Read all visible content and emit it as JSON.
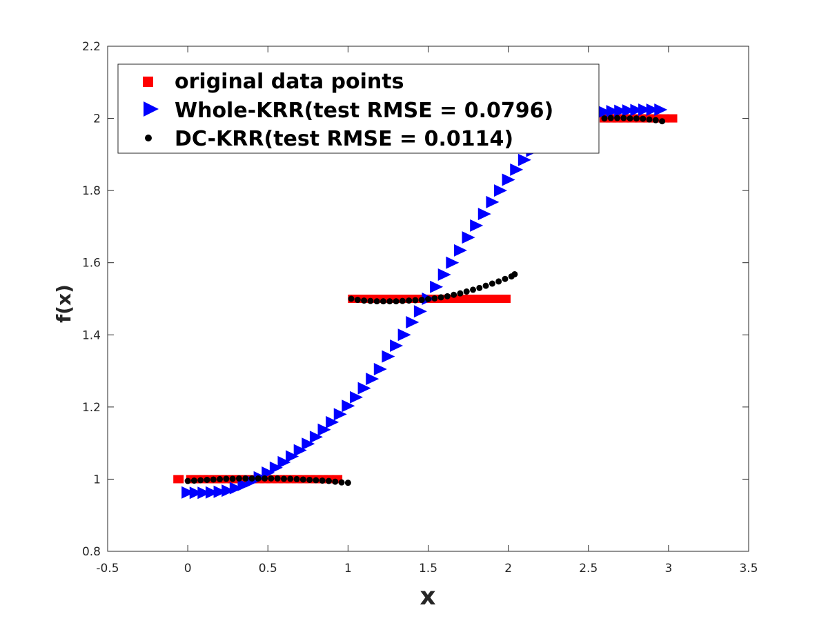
{
  "chart_data": {
    "type": "scatter",
    "title": "",
    "xlabel": "x",
    "ylabel": "f(x)",
    "xlim": [
      -0.5,
      3.5
    ],
    "ylim": [
      0.8,
      2.2
    ],
    "x_ticks": [
      "-0.5",
      "0",
      "0.5",
      "1",
      "1.5",
      "2",
      "2.5",
      "3",
      "3.5"
    ],
    "y_ticks": [
      "0.8",
      "1",
      "1.2",
      "1.4",
      "1.6",
      "1.8",
      "2",
      "2.2"
    ],
    "x_tick_values": [
      -0.5,
      0,
      0.5,
      1,
      1.5,
      2,
      2.5,
      3,
      3.5
    ],
    "y_tick_values": [
      0.8,
      1,
      1.2,
      1.4,
      1.6,
      1.8,
      2,
      2.2
    ],
    "grid": false,
    "legend_placement": "top-left",
    "series": [
      {
        "name": "original data points",
        "marker": "square",
        "color": "#ff0000",
        "points": [
          [
            -0.06,
            1.0
          ],
          [
            0.02,
            1.0
          ],
          [
            0.05,
            1.0
          ],
          [
            0.09,
            1.0
          ],
          [
            0.13,
            1.0
          ],
          [
            0.17,
            1.0
          ],
          [
            0.2,
            1.0
          ],
          [
            0.24,
            1.0
          ],
          [
            0.28,
            1.0
          ],
          [
            0.32,
            1.0
          ],
          [
            0.36,
            1.0
          ],
          [
            0.4,
            1.0
          ],
          [
            0.44,
            1.0
          ],
          [
            0.48,
            1.0
          ],
          [
            0.52,
            1.0
          ],
          [
            0.56,
            1.0
          ],
          [
            0.6,
            1.0
          ],
          [
            0.64,
            1.0
          ],
          [
            0.68,
            1.0
          ],
          [
            0.72,
            1.0
          ],
          [
            0.76,
            1.0
          ],
          [
            0.8,
            1.0
          ],
          [
            0.84,
            1.0
          ],
          [
            0.88,
            1.0
          ],
          [
            0.93,
            1.0
          ],
          [
            1.03,
            1.5
          ],
          [
            1.07,
            1.5
          ],
          [
            1.11,
            1.5
          ],
          [
            1.15,
            1.5
          ],
          [
            1.19,
            1.5
          ],
          [
            1.24,
            1.5
          ],
          [
            1.28,
            1.5
          ],
          [
            1.33,
            1.5
          ],
          [
            1.38,
            1.5
          ],
          [
            1.43,
            1.5
          ],
          [
            1.48,
            1.5
          ],
          [
            1.53,
            1.5
          ],
          [
            1.58,
            1.5
          ],
          [
            1.63,
            1.5
          ],
          [
            1.68,
            1.5
          ],
          [
            1.73,
            1.5
          ],
          [
            1.78,
            1.5
          ],
          [
            1.83,
            1.5
          ],
          [
            1.88,
            1.5
          ],
          [
            1.93,
            1.5
          ],
          [
            1.98,
            1.5
          ],
          [
            2.6,
            2.0
          ],
          [
            2.64,
            2.0
          ],
          [
            2.68,
            2.0
          ],
          [
            2.72,
            2.0
          ],
          [
            2.77,
            2.0
          ],
          [
            2.82,
            2.0
          ],
          [
            2.87,
            2.0
          ],
          [
            2.92,
            2.0
          ],
          [
            2.97,
            2.0
          ],
          [
            3.02,
            2.0
          ]
        ]
      },
      {
        "name": "Whole-KRR(test RMSE = 0.0796)",
        "marker": "triangle-right",
        "color": "#0000ff",
        "points": [
          [
            0.0,
            0.963
          ],
          [
            0.05,
            0.962
          ],
          [
            0.1,
            0.962
          ],
          [
            0.15,
            0.963
          ],
          [
            0.2,
            0.965
          ],
          [
            0.25,
            0.968
          ],
          [
            0.3,
            0.975
          ],
          [
            0.35,
            0.984
          ],
          [
            0.4,
            0.994
          ],
          [
            0.45,
            1.005
          ],
          [
            0.5,
            1.018
          ],
          [
            0.55,
            1.032
          ],
          [
            0.6,
            1.047
          ],
          [
            0.65,
            1.063
          ],
          [
            0.7,
            1.08
          ],
          [
            0.75,
            1.098
          ],
          [
            0.8,
            1.117
          ],
          [
            0.85,
            1.137
          ],
          [
            0.9,
            1.158
          ],
          [
            0.95,
            1.18
          ],
          [
            1.0,
            1.203
          ],
          [
            1.05,
            1.227
          ],
          [
            1.1,
            1.252
          ],
          [
            1.15,
            1.278
          ],
          [
            1.2,
            1.305
          ],
          [
            1.25,
            1.34
          ],
          [
            1.3,
            1.37
          ],
          [
            1.35,
            1.4
          ],
          [
            1.4,
            1.435
          ],
          [
            1.45,
            1.465
          ],
          [
            1.5,
            1.5
          ],
          [
            1.55,
            1.533
          ],
          [
            1.6,
            1.567
          ],
          [
            1.65,
            1.6
          ],
          [
            1.7,
            1.634
          ],
          [
            1.75,
            1.67
          ],
          [
            1.8,
            1.703
          ],
          [
            1.85,
            1.735
          ],
          [
            1.9,
            1.768
          ],
          [
            1.95,
            1.8
          ],
          [
            2.0,
            1.83
          ],
          [
            2.05,
            1.858
          ],
          [
            2.1,
            1.885
          ],
          [
            2.15,
            1.91
          ],
          [
            2.2,
            1.933
          ],
          [
            2.25,
            1.953
          ],
          [
            2.3,
            1.97
          ],
          [
            2.35,
            1.985
          ],
          [
            2.4,
            1.997
          ],
          [
            2.45,
            2.006
          ],
          [
            2.5,
            2.012
          ],
          [
            2.55,
            2.016
          ],
          [
            2.6,
            2.018
          ],
          [
            2.65,
            2.02
          ],
          [
            2.7,
            2.021
          ],
          [
            2.75,
            2.022
          ],
          [
            2.8,
            2.023
          ],
          [
            2.85,
            2.024
          ],
          [
            2.9,
            2.024
          ],
          [
            2.95,
            2.024
          ]
        ]
      },
      {
        "name": "DC-KRR(test RMSE = 0.0114)",
        "marker": "dot",
        "color": "#000000",
        "points": [
          [
            0.0,
            0.995
          ],
          [
            0.04,
            0.996
          ],
          [
            0.08,
            0.997
          ],
          [
            0.12,
            0.998
          ],
          [
            0.16,
            0.999
          ],
          [
            0.2,
            1.0
          ],
          [
            0.24,
            1.001
          ],
          [
            0.28,
            1.001
          ],
          [
            0.32,
            1.002
          ],
          [
            0.36,
            1.002
          ],
          [
            0.4,
            1.002
          ],
          [
            0.44,
            1.002
          ],
          [
            0.48,
            1.002
          ],
          [
            0.52,
            1.002
          ],
          [
            0.56,
            1.002
          ],
          [
            0.6,
            1.001
          ],
          [
            0.64,
            1.001
          ],
          [
            0.68,
            1.0
          ],
          [
            0.72,
            0.999
          ],
          [
            0.76,
            0.998
          ],
          [
            0.8,
            0.997
          ],
          [
            0.84,
            0.996
          ],
          [
            0.88,
            0.995
          ],
          [
            0.92,
            0.993
          ],
          [
            0.96,
            0.991
          ],
          [
            1.0,
            0.99
          ],
          [
            1.02,
            1.5
          ],
          [
            1.06,
            1.497
          ],
          [
            1.1,
            1.495
          ],
          [
            1.14,
            1.494
          ],
          [
            1.18,
            1.493
          ],
          [
            1.22,
            1.493
          ],
          [
            1.26,
            1.493
          ],
          [
            1.3,
            1.493
          ],
          [
            1.34,
            1.494
          ],
          [
            1.38,
            1.495
          ],
          [
            1.42,
            1.496
          ],
          [
            1.46,
            1.497
          ],
          [
            1.5,
            1.499
          ],
          [
            1.54,
            1.501
          ],
          [
            1.58,
            1.504
          ],
          [
            1.62,
            1.507
          ],
          [
            1.66,
            1.511
          ],
          [
            1.7,
            1.515
          ],
          [
            1.74,
            1.52
          ],
          [
            1.78,
            1.525
          ],
          [
            1.82,
            1.53
          ],
          [
            1.86,
            1.536
          ],
          [
            1.9,
            1.542
          ],
          [
            1.94,
            1.548
          ],
          [
            1.98,
            1.555
          ],
          [
            2.02,
            1.562
          ],
          [
            2.04,
            1.568
          ],
          [
            2.6,
            2.0
          ],
          [
            2.64,
            2.001
          ],
          [
            2.68,
            2.001
          ],
          [
            2.72,
            2.001
          ],
          [
            2.76,
            2.0
          ],
          [
            2.8,
            2.0
          ],
          [
            2.84,
            1.999
          ],
          [
            2.88,
            1.997
          ],
          [
            2.92,
            1.995
          ],
          [
            2.96,
            1.992
          ]
        ]
      }
    ]
  }
}
